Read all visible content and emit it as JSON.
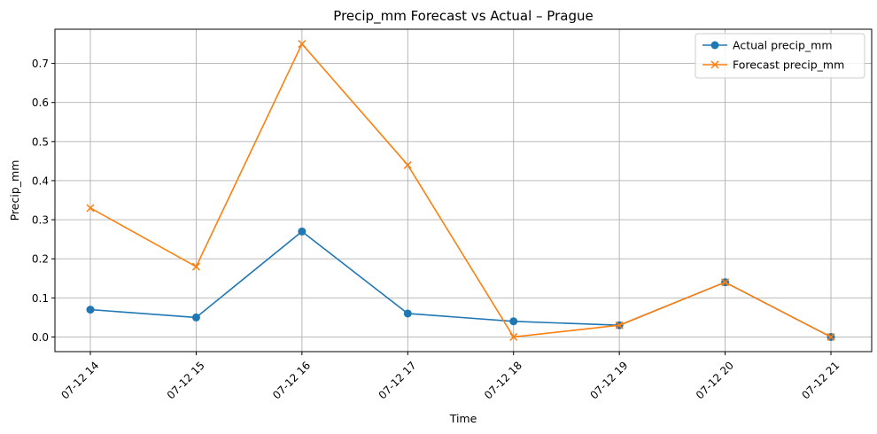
{
  "chart_data": {
    "type": "line",
    "title": "Precip_mm Forecast vs Actual – Prague",
    "xlabel": "Time",
    "ylabel": "Precip_mm",
    "categories": [
      "07-12 14",
      "07-12 15",
      "07-12 16",
      "07-12 17",
      "07-12 18",
      "07-12 19",
      "07-12 20",
      "07-12 21"
    ],
    "ylim": [
      -0.0375,
      0.7875
    ],
    "yticks": [
      "0.0",
      "0.1",
      "0.2",
      "0.3",
      "0.4",
      "0.5",
      "0.6",
      "0.7"
    ],
    "grid": true,
    "legend_position": "top-right",
    "series": [
      {
        "name": "Actual precip_mm",
        "marker": "circle",
        "color": "#1f77b4",
        "values": [
          0.07,
          0.05,
          0.27,
          0.06,
          0.04,
          0.03,
          0.14,
          0.0
        ]
      },
      {
        "name": "Forecast precip_mm",
        "marker": "x",
        "color": "#ff7f0e",
        "values": [
          0.33,
          0.18,
          0.75,
          0.44,
          0.0,
          0.03,
          0.14,
          0.0
        ]
      }
    ]
  }
}
